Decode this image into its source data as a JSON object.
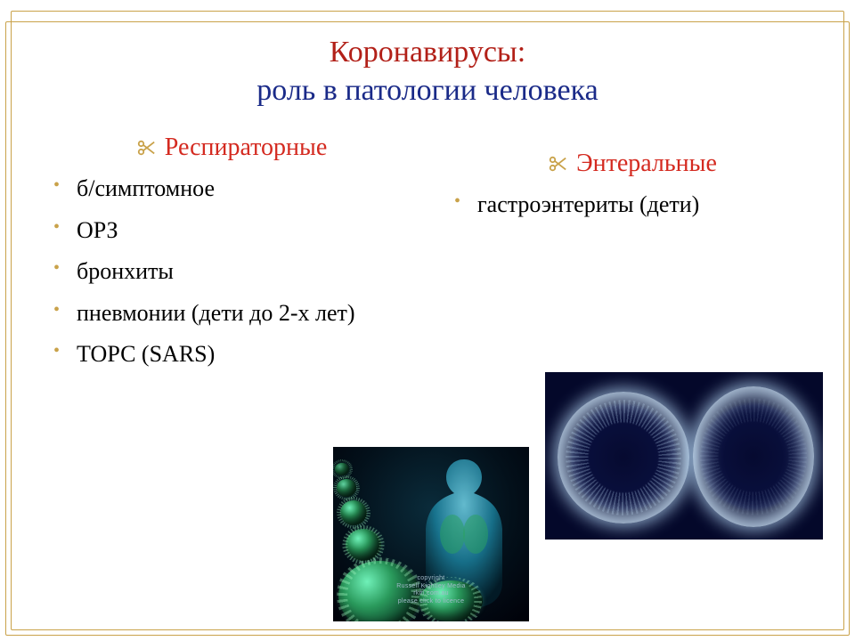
{
  "colors": {
    "frame": "#c9a24a",
    "title_line1": "#b22018",
    "title_line2": "#1a2a88",
    "header": "#d42a20",
    "body_text": "#000000",
    "bullet": "#c9a24a",
    "img_bg": "#04082a",
    "ring_glow": "#cfe6ff"
  },
  "typography": {
    "title_fontsize_pt": 26,
    "header_fontsize_pt": 21,
    "body_fontsize_pt": 20,
    "font_family": "Times New Roman"
  },
  "title": {
    "line1": "Коронавирусы:",
    "line2": "роль в патологии человека"
  },
  "left": {
    "header": "Респираторные",
    "items": [
      "б/симптомное",
      "ОРЗ",
      "бронхиты",
      "пневмонии (дети до 2-х лет)",
      "ТОРС (SARS)"
    ]
  },
  "right": {
    "header": "Энтеральные",
    "items": [
      "гастроэнтериты (дети)"
    ]
  },
  "image1": {
    "caption_line1": "copyright",
    "caption_line2": "Russell Kightley Media",
    "caption_line3": "rkm.com.au",
    "caption_line4": "please click to licence"
  }
}
